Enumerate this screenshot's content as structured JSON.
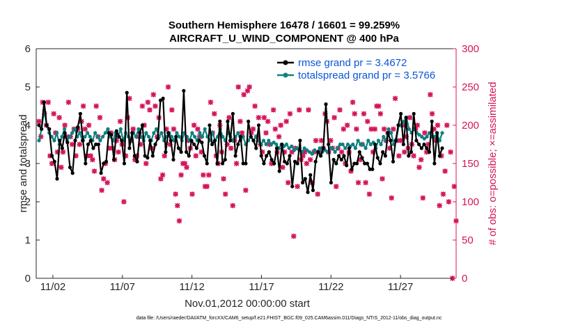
{
  "chart_data": {
    "type": "line",
    "title_line1": "Southern Hemisphere 16478 / 16601 = 99.259%",
    "title_line2": "AIRCRAFT_U_WIND_COMPONENT @ 400 hPa",
    "ylabel_left": "rmse and totalspread",
    "ylabel_right": "# of obs: o=possible; ×=assimilated",
    "xlabel": "Nov.01,2012 00:00:00 start",
    "footnote": "data file: /Users/raeder/DAI/ATM_forcXX/CAM6_setup/f.e21.FHIST_BGC.f09_025.CAM6assim.011/Diags_NTrS_2012-11/obs_diag_output.nc",
    "x_tick_labels": [
      "11/02",
      "11/07",
      "11/12",
      "11/17",
      "11/22",
      "11/27"
    ],
    "x_tick_days": [
      2,
      7,
      12,
      17,
      22,
      27
    ],
    "xlim": [
      0.8,
      31.0
    ],
    "ylim_left": [
      0,
      6
    ],
    "y_ticks_left": [
      "0",
      "1",
      "2",
      "3",
      "4",
      "5",
      "6"
    ],
    "ylim_right": [
      0,
      300
    ],
    "y_ticks_right": [
      "0",
      "50",
      "100",
      "150",
      "200",
      "250",
      "300"
    ],
    "colors": {
      "rmse": "#000000",
      "totalspread": "#0f8080",
      "obs": "#d4145a",
      "legend_text": "#0a55d8"
    },
    "series": [
      {
        "name": "rmse grand pr = 3.4672",
        "color": "#000000",
        "values": [
          4.0,
          3.9,
          4.6,
          4.0,
          3.9,
          3.2,
          3.05,
          2.6,
          3.6,
          3.4,
          3.8,
          3.55,
          2.9,
          2.75,
          3.6,
          3.95,
          4.3,
          3.6,
          3.0,
          3.5,
          3.6,
          3.4,
          3.5,
          3.5,
          2.75,
          3.0,
          3.05,
          3.8,
          3.75,
          3.1,
          3.85,
          3.7,
          3.6,
          3.0,
          4.85,
          3.4,
          3.8,
          3.2,
          3.05,
          3.8,
          4.0,
          3.2,
          3.15,
          3.6,
          3.2,
          3.5,
          3.65,
          4.65,
          4.7,
          3.3,
          3.8,
          3.6,
          3.1,
          3.7,
          3.4,
          3.3,
          4.9,
          3.3,
          3.2,
          3.6,
          3.5,
          3.4,
          3.6,
          3.55,
          3.2,
          3.0,
          4.0,
          3.5,
          3.6,
          3.0,
          4.1,
          3.0,
          3.1,
          4.1,
          3.6,
          4.3,
          3.2,
          3.5,
          3.7,
          3.0,
          3.0,
          4.1,
          3.7,
          3.6,
          3.4,
          4.0,
          3.2,
          3.0,
          3.2,
          3.3,
          3.1,
          3.0,
          3.4,
          2.8,
          3.5,
          3.05,
          3.0,
          3.2,
          2.4,
          3.05,
          3.0,
          3.6,
          2.5,
          2.6,
          2.25,
          2.7,
          2.3,
          3.05,
          3.3,
          3.2,
          3.4,
          4.55,
          3.5,
          2.5,
          3.1,
          3.0,
          3.2,
          3.1,
          3.2,
          2.95,
          3.4,
          2.85,
          3.0,
          3.0,
          3.3,
          3.15,
          3.0,
          3.0,
          2.85,
          2.85,
          3.5,
          3.15,
          3.0,
          3.3,
          3.2,
          3.8,
          3.6,
          3.05,
          3.6,
          4.0,
          4.3,
          3.5,
          4.2,
          3.2,
          3.3,
          4.3,
          3.6,
          3.5,
          3.4,
          3.5,
          3.4,
          3.3,
          4.1,
          3.0,
          3.8,
          3.2,
          3.4
        ]
      },
      {
        "name": "totalspread grand pr = 3.5766",
        "color": "#0f8080",
        "values": [
          3.6,
          3.9,
          4.4,
          4.0,
          3.8,
          3.7,
          3.6,
          3.8,
          3.5,
          3.7,
          3.9,
          3.6,
          3.7,
          3.8,
          3.9,
          3.7,
          3.8,
          3.6,
          3.7,
          3.8,
          3.7,
          3.6,
          3.8,
          3.7,
          3.6,
          3.7,
          3.8,
          3.9,
          3.7,
          3.6,
          3.8,
          3.7,
          3.9,
          3.6,
          3.8,
          3.7,
          3.6,
          3.8,
          3.7,
          3.9,
          3.7,
          3.6,
          3.8,
          3.7,
          3.6,
          3.8,
          3.9,
          3.7,
          3.8,
          3.6,
          3.7,
          3.8,
          3.7,
          3.6,
          3.8,
          3.7,
          3.6,
          3.8,
          3.7,
          3.6,
          3.8,
          3.7,
          3.6,
          3.8,
          3.7,
          3.9,
          3.7,
          3.6,
          3.8,
          3.6,
          3.7,
          3.9,
          3.7,
          3.6,
          3.8,
          3.7,
          3.6,
          3.7,
          3.8,
          3.6,
          3.7,
          3.5,
          3.6,
          3.7,
          3.6,
          3.7,
          3.6,
          3.5,
          3.6,
          3.5,
          3.6,
          3.5,
          3.55,
          3.5,
          3.4,
          3.5,
          3.45,
          3.5,
          3.4,
          3.45,
          3.35,
          3.4,
          3.35,
          3.3,
          3.4,
          3.35,
          3.3,
          3.25,
          3.35,
          3.3,
          3.4,
          3.3,
          3.35,
          3.3,
          3.4,
          3.4,
          3.3,
          3.4,
          3.5,
          3.5,
          3.4,
          3.5,
          3.45,
          3.5,
          3.4,
          3.6,
          3.5,
          3.5,
          3.4,
          3.6,
          3.5,
          3.55,
          3.4,
          3.6,
          3.5,
          3.7,
          3.6,
          3.9,
          3.8,
          3.5,
          3.6,
          4.0,
          4.0,
          4.1,
          4.2,
          3.9,
          3.8,
          3.9,
          3.8,
          3.75,
          3.7,
          3.65,
          3.7,
          3.8,
          3.7,
          3.7,
          3.75,
          3.6,
          3.8
        ]
      }
    ],
    "obs_possible": [
      205,
      185,
      230,
      215,
      200,
      230,
      160,
      150,
      215,
      190,
      165,
      210,
      145,
      165,
      200,
      185,
      230,
      185,
      175,
      195,
      160,
      195,
      175,
      205,
      225,
      195,
      160,
      200,
      160,
      155,
      140,
      225,
      185,
      210,
      115,
      130,
      150,
      125,
      170,
      190,
      170,
      155,
      180,
      165,
      205,
      175,
      100,
      160,
      210,
      235,
      180,
      195,
      155,
      160,
      185,
      175,
      225,
      200,
      150,
      230,
      220,
      170,
      240,
      225,
      185,
      210,
      130,
      135,
      160,
      195,
      250,
      175,
      220,
      195,
      110,
      95,
      75,
      135,
      150,
      150,
      145,
      180,
      170,
      110,
      200,
      160,
      195,
      185,
      165,
      135,
      120,
      120,
      135,
      230,
      190,
      215,
      160,
      150,
      200,
      165,
      130,
      110,
      175,
      210,
      170,
      95,
      180,
      150,
      250,
      205,
      190,
      240,
      115,
      245,
      250,
      190,
      195,
      225,
      185,
      210,
      175,
      165,
      210,
      190,
      205,
      175,
      150,
      220,
      195,
      165,
      185,
      200,
      145,
      165,
      205,
      125,
      215,
      165,
      55,
      170,
      120,
      220,
      155,
      160,
      165,
      150,
      220,
      155,
      125,
      165,
      180,
      110,
      165,
      180,
      170,
      215,
      205,
      165,
      180,
      170,
      210,
      120,
      170,
      220,
      165,
      195,
      150,
      200,
      165,
      140,
      230,
      215,
      195,
      125,
      155,
      175,
      215,
      125,
      205,
      110,
      195,
      165,
      195,
      225,
      225,
      215,
      130,
      195,
      180,
      190,
      170,
      105,
      195,
      235,
      180,
      160,
      180,
      200,
      165,
      185,
      170,
      210,
      175,
      160,
      195,
      200,
      145,
      155,
      105,
      190,
      165,
      175,
      240,
      215,
      195,
      180,
      200,
      95,
      160,
      110,
      140,
      200,
      100,
      165,
      0,
      120,
      75
    ]
  }
}
